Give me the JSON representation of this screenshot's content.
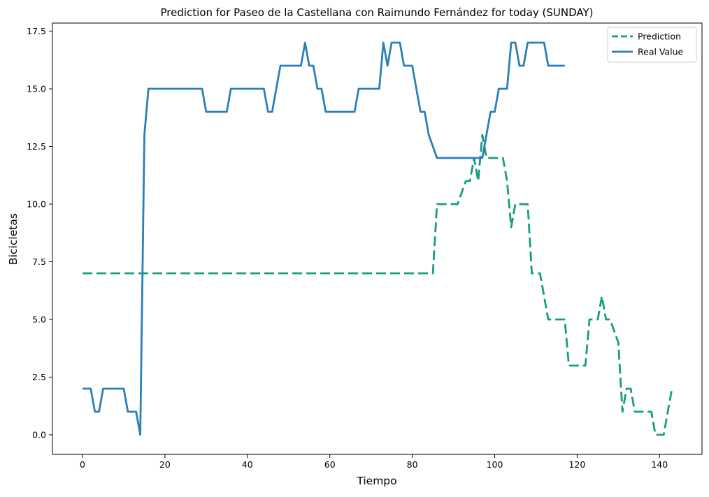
{
  "chart_data": {
    "type": "line",
    "title": "Prediction for Paseo de la Castellana con Raimundo Fernández for today (SUNDAY)",
    "xlabel": "Tiempo",
    "ylabel": "Bicicletas",
    "xlim": [
      -7.3,
      150.3
    ],
    "ylim": [
      -0.85,
      17.85
    ],
    "xticks": [
      0,
      20,
      40,
      60,
      80,
      100,
      120,
      140
    ],
    "yticks": [
      0.0,
      2.5,
      5.0,
      7.5,
      10.0,
      12.5,
      15.0,
      17.5
    ],
    "xtick_labels": [
      "0",
      "20",
      "40",
      "60",
      "80",
      "100",
      "120",
      "140"
    ],
    "ytick_labels": [
      "0.0",
      "2.5",
      "5.0",
      "7.5",
      "10.0",
      "12.5",
      "15.0",
      "17.5"
    ],
    "grid": false,
    "legend_position": "top-right",
    "series": [
      {
        "name": "Prediction",
        "color": "#159d82",
        "style": "dashed",
        "x": [
          0,
          85,
          86,
          91,
          93,
          94,
          95,
          96,
          97,
          98,
          102,
          103,
          104,
          105,
          108,
          109,
          111,
          112,
          113,
          117,
          118,
          122,
          123,
          125,
          126,
          127,
          128,
          130,
          131,
          132,
          133,
          134,
          135,
          137,
          138,
          139,
          140,
          141,
          143
        ],
        "y": [
          7,
          7,
          10,
          10,
          11,
          11,
          12,
          11,
          13,
          12,
          12,
          11,
          9,
          10,
          10,
          7,
          7,
          6,
          5,
          5,
          3,
          3,
          5,
          5,
          6,
          5,
          5,
          4,
          1,
          2,
          2,
          1,
          1,
          1,
          1,
          0,
          0,
          0,
          2
        ]
      },
      {
        "name": "Real Value",
        "color": "#2c7fb8",
        "style": "solid",
        "x": [
          0,
          2,
          3,
          4,
          5,
          10,
          11,
          13,
          14,
          15,
          16,
          29,
          30,
          35,
          36,
          44,
          45,
          46,
          48,
          53,
          54,
          55,
          56,
          57,
          58,
          59,
          60,
          66,
          67,
          72,
          73,
          74,
          75,
          77,
          78,
          80,
          82,
          83,
          84,
          86,
          96,
          97,
          98,
          99,
          100,
          101,
          103,
          104,
          105,
          106,
          107,
          108,
          112,
          113,
          117
        ],
        "y": [
          2,
          2,
          1,
          1,
          2,
          2,
          1,
          1,
          0,
          13,
          15,
          15,
          14,
          14,
          15,
          15,
          14,
          14,
          16,
          16,
          17,
          16,
          16,
          15,
          15,
          14,
          14,
          14,
          15,
          15,
          17,
          16,
          17,
          17,
          16,
          16,
          14,
          14,
          13,
          12,
          12,
          12,
          13,
          14,
          14,
          15,
          15,
          17,
          17,
          16,
          16,
          17,
          17,
          16,
          16
        ]
      }
    ]
  }
}
